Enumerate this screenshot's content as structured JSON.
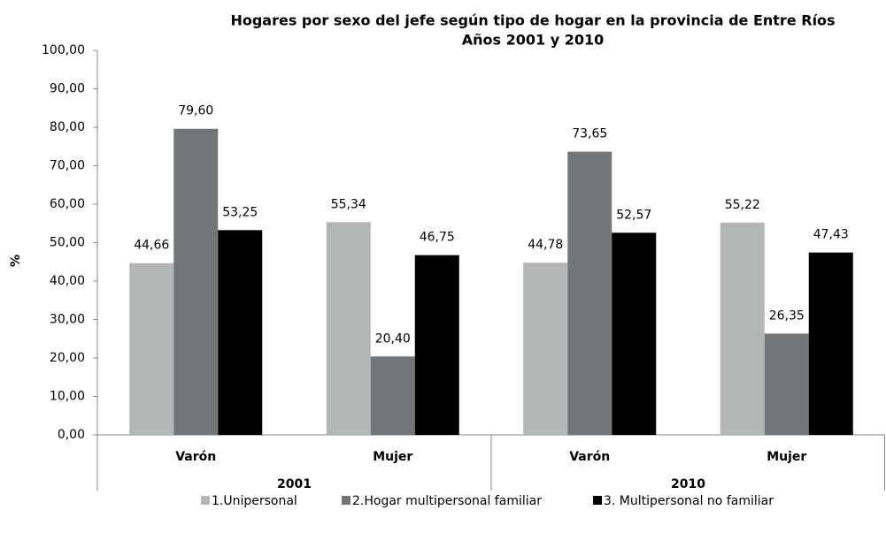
{
  "chart_data": {
    "type": "bar",
    "title": "Hogares por sexo del jefe según tipo de hogar en la provincia de Entre Ríos",
    "subtitle": "Años 2001 y 2010",
    "y_label": "%",
    "categories": [
      "Varón",
      "Mujer",
      "Varón",
      "Mujer"
    ],
    "group_labels": [
      "2001",
      "2010"
    ],
    "ylim": [
      0,
      100
    ],
    "yticks": [
      {
        "value": 0,
        "label": "0,00"
      },
      {
        "value": 10,
        "label": "10,00"
      },
      {
        "value": 20,
        "label": "20,00"
      },
      {
        "value": 30,
        "label": "30,00"
      },
      {
        "value": 40,
        "label": "40,00"
      },
      {
        "value": 50,
        "label": "50,00"
      },
      {
        "value": 60,
        "label": "60,00"
      },
      {
        "value": 70,
        "label": "70,00"
      },
      {
        "value": 80,
        "label": "80,00"
      },
      {
        "value": 90,
        "label": "90,00"
      },
      {
        "value": 100,
        "label": "100,00"
      }
    ],
    "series": [
      {
        "name": "1.Unipersonal",
        "color": "#b3b6b6",
        "values": [
          44.66,
          55.34,
          44.78,
          55.22
        ],
        "value_labels": [
          "44,66",
          "55,34",
          "44,78",
          "55,22"
        ]
      },
      {
        "name": "2.Hogar multipersonal familiar",
        "color": "#737678",
        "values": [
          79.6,
          20.4,
          73.65,
          26.35
        ],
        "value_labels": [
          "79,60",
          "20,40",
          "73,65",
          "26,35"
        ]
      },
      {
        "name": "3. Multipersonal no familiar",
        "color": "#000000",
        "values": [
          53.25,
          46.75,
          52.57,
          47.43
        ],
        "value_labels": [
          "53,25",
          "46,75",
          "52,57",
          "47,43"
        ]
      }
    ],
    "legend": "bottom"
  }
}
